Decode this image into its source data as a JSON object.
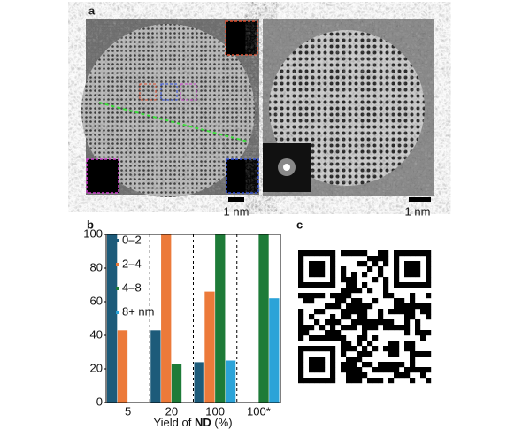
{
  "panels": {
    "a": "a",
    "b": "b",
    "c": "c"
  },
  "scale_bars": [
    "1 nm",
    "1 nm"
  ],
  "chart_data": {
    "type": "bar",
    "categories": [
      "5",
      "20",
      "100",
      "100*"
    ],
    "series": [
      {
        "name": "0–2",
        "color": "#1d5b7a",
        "values": [
          100,
          43,
          24,
          null
        ]
      },
      {
        "name": "2–4",
        "color": "#ec7a3a",
        "values": [
          43,
          100,
          66,
          null
        ]
      },
      {
        "name": "4–8",
        "color": "#1e7b38",
        "values": [
          null,
          23,
          100,
          100
        ]
      },
      {
        "name": "8+ nm",
        "color": "#2ba3d8",
        "values": [
          null,
          null,
          25,
          62
        ]
      }
    ],
    "xlabel": [
      "Yield of ",
      "ND",
      " (%)"
    ],
    "ylim": [
      0,
      100
    ],
    "yticks": [
      0,
      20,
      40,
      60,
      80,
      100
    ]
  }
}
